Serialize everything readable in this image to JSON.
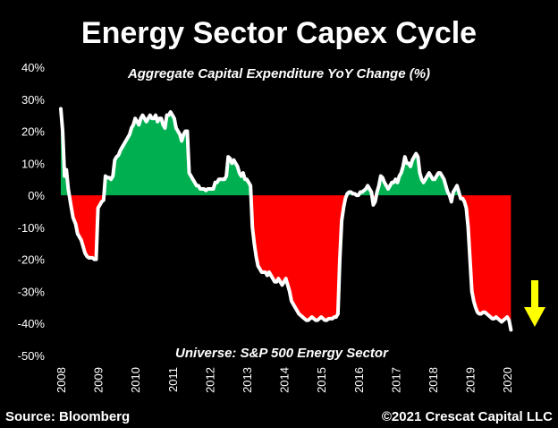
{
  "chart_data": {
    "type": "area",
    "title": "Energy Sector Capex Cycle",
    "subtitle": "Aggregate Capital Expenditure YoY Change (%)",
    "annotation": "Universe: S&P 500 Energy Sector",
    "source": "Source: Bloomberg",
    "copyright": "©2021 Crescat Capital LLC",
    "ylim": [
      -50,
      40
    ],
    "yticks": [
      40,
      30,
      20,
      10,
      0,
      -10,
      -20,
      -30,
      -40,
      -50
    ],
    "ytick_labels": [
      "40%",
      "30%",
      "20%",
      "10%",
      "0%",
      "-10%",
      "-20%",
      "-30%",
      "-40%",
      "-50%"
    ],
    "xlim": [
      2008,
      2020.5
    ],
    "xticks": [
      2008,
      2009,
      2010,
      2011,
      2012,
      2013,
      2014,
      2015,
      2016,
      2017,
      2018,
      2019,
      2020
    ],
    "xtick_labels": [
      "2008",
      "2009",
      "2010",
      "2011",
      "2012",
      "2013",
      "2014",
      "2015",
      "2016",
      "2017",
      "2018",
      "2019",
      "2020"
    ],
    "positive_color": "#00b050",
    "negative_color": "#ff0000",
    "line_color": "#ffffff",
    "arrow_color": "#ffff00",
    "arrow_direction": "down",
    "grid": false,
    "series": [
      {
        "x": [
          2008.0,
          2008.05,
          2008.1,
          2008.15,
          2008.2,
          2008.27,
          2008.33,
          2008.4,
          2008.45,
          2008.5,
          2008.55,
          2008.6,
          2008.65,
          2008.7,
          2008.75,
          2008.8,
          2008.85,
          2008.9,
          2008.95,
          2009.0,
          2009.05,
          2009.1,
          2009.15,
          2009.2,
          2009.25,
          2009.3,
          2009.35,
          2009.4,
          2009.45,
          2009.5,
          2009.55,
          2009.6,
          2009.65,
          2009.7,
          2009.75,
          2009.8,
          2009.85,
          2009.9,
          2009.95,
          2010.0,
          2010.05,
          2010.1,
          2010.15,
          2010.2,
          2010.25,
          2010.3,
          2010.35,
          2010.4,
          2010.45,
          2010.5,
          2010.55,
          2010.6,
          2010.65,
          2010.7,
          2010.75,
          2010.8,
          2010.85,
          2010.9,
          2010.95,
          2011.0,
          2011.05,
          2011.1,
          2011.15,
          2011.2,
          2011.25,
          2011.3,
          2011.35,
          2011.4,
          2011.45,
          2011.5,
          2011.55,
          2011.6,
          2011.65,
          2011.7,
          2011.75,
          2011.8,
          2011.85,
          2011.9,
          2011.95,
          2012.0,
          2012.05,
          2012.1,
          2012.15,
          2012.2,
          2012.25,
          2012.3,
          2012.35,
          2012.4,
          2012.45,
          2012.5,
          2012.55,
          2012.6,
          2012.65,
          2012.7,
          2012.75,
          2012.8,
          2012.85,
          2012.9,
          2012.95,
          2013.0,
          2013.05,
          2013.1,
          2013.15,
          2013.2,
          2013.25,
          2013.3,
          2013.35,
          2013.4,
          2013.45,
          2013.5,
          2013.55,
          2013.6,
          2013.65,
          2013.7,
          2013.75,
          2013.8,
          2013.85,
          2013.9,
          2013.95,
          2014.0,
          2014.05,
          2014.1,
          2014.15,
          2014.2,
          2014.25,
          2014.3,
          2014.35,
          2014.4,
          2014.45,
          2014.5,
          2014.55,
          2014.6,
          2014.65,
          2014.7,
          2014.75,
          2014.8,
          2014.85,
          2014.9,
          2014.95,
          2015.0,
          2015.05,
          2015.1,
          2015.15,
          2015.2,
          2015.25,
          2015.3,
          2015.35,
          2015.4,
          2015.45,
          2015.5,
          2015.55,
          2015.6,
          2015.65,
          2015.7,
          2015.75,
          2015.8,
          2015.85,
          2015.9,
          2015.95,
          2016.0,
          2016.05,
          2016.1,
          2016.15,
          2016.2,
          2016.25,
          2016.3,
          2016.35,
          2016.4,
          2016.45,
          2016.5,
          2016.55,
          2016.6,
          2016.65,
          2016.7,
          2016.75,
          2016.8,
          2016.85,
          2016.9,
          2016.95,
          2017.0,
          2017.05,
          2017.1,
          2017.15,
          2017.2,
          2017.25,
          2017.3,
          2017.35,
          2017.4,
          2017.45,
          2017.5,
          2017.55,
          2017.6,
          2017.65,
          2017.7,
          2017.75,
          2017.8,
          2017.85,
          2017.9,
          2017.95,
          2018.0,
          2018.05,
          2018.1,
          2018.15,
          2018.2,
          2018.25,
          2018.3,
          2018.35,
          2018.4,
          2018.45,
          2018.5,
          2018.55,
          2018.6,
          2018.65,
          2018.7,
          2018.75,
          2018.8,
          2018.85,
          2018.9,
          2018.95,
          2019.0,
          2019.05,
          2019.1,
          2019.15,
          2019.2,
          2019.25,
          2019.3,
          2019.35,
          2019.4,
          2019.45,
          2019.5,
          2019.55,
          2019.6,
          2019.65,
          2019.7,
          2019.75,
          2019.8,
          2019.85,
          2019.9,
          2019.95,
          2020.0,
          2020.05,
          2020.1
        ],
        "y": [
          27,
          20,
          6,
          8,
          2,
          -3,
          -7,
          -9,
          -12,
          -13,
          -14,
          -16,
          -18,
          -19,
          -19.5,
          -19.5,
          -19.5,
          -20,
          -20,
          -4,
          -3,
          -2,
          -1.5,
          6,
          5.5,
          5.5,
          5,
          6,
          11,
          12,
          12.5,
          14,
          15,
          16,
          17,
          18,
          19,
          21,
          22,
          24,
          23,
          22,
          24,
          25,
          24,
          23,
          24,
          25,
          24,
          24,
          25,
          23,
          24,
          24,
          22,
          21,
          25,
          25,
          26,
          25,
          24,
          21,
          20,
          19,
          17,
          19,
          20,
          20,
          7,
          6,
          5,
          4,
          3,
          3,
          2,
          2,
          2,
          1.5,
          2,
          2,
          2,
          2,
          4,
          4,
          5,
          5,
          5,
          5,
          6,
          12,
          11.5,
          10,
          11,
          10,
          9,
          7,
          6,
          7,
          5,
          5,
          4,
          3,
          -10,
          -15,
          -19,
          -22,
          -23,
          -24,
          -24,
          -24,
          -25,
          -24,
          -25,
          -26,
          -27,
          -27,
          -26,
          -27,
          -28,
          -27,
          -26,
          -28,
          -30,
          -33,
          -34,
          -35,
          -36,
          -37,
          -37.5,
          -38,
          -38.5,
          -39,
          -39,
          -38.5,
          -38,
          -38.5,
          -39,
          -39,
          -38.5,
          -38,
          -38.5,
          -39,
          -39,
          -38.5,
          -38.5,
          -38.5,
          -38,
          -38,
          -37,
          -20,
          -8,
          -4,
          -1,
          0.5,
          1,
          1,
          0.5,
          0.5,
          0,
          0,
          1,
          1,
          1.5,
          2,
          3,
          2,
          1,
          -3,
          -2,
          1,
          3,
          6,
          5.5,
          4,
          3,
          2,
          3,
          4,
          4,
          5,
          4,
          6,
          7,
          9,
          12,
          10,
          10,
          9,
          11,
          12,
          13,
          12,
          7,
          5,
          4,
          5,
          6,
          7,
          6,
          5,
          5,
          6,
          7,
          7,
          6,
          5,
          3,
          1,
          0,
          -2,
          1,
          2,
          3,
          1,
          -1,
          -1,
          -2,
          -4,
          -10,
          -20,
          -30,
          -33,
          -35,
          -36.5,
          -37,
          -37,
          -36.5,
          -36.5,
          -37,
          -37.5,
          -38,
          -38.5,
          -38.5,
          -38,
          -38.5,
          -39,
          -39.5,
          -39,
          -38.5,
          -38,
          -39,
          -42
        ]
      }
    ]
  }
}
